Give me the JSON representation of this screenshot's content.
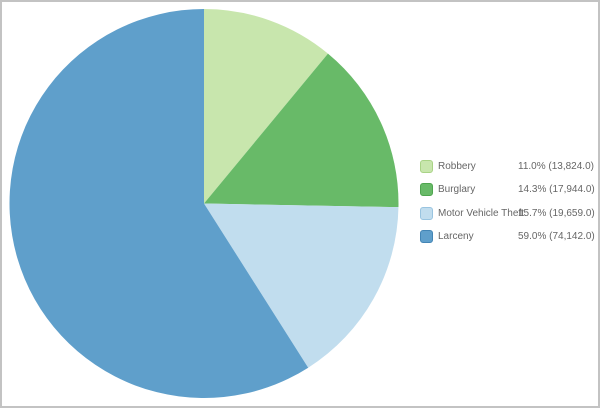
{
  "figure": {
    "background_color": "#ffffff",
    "frame_border_color": "#c3c3c3"
  },
  "chart_data": {
    "type": "pie",
    "title": "",
    "start_angle_deg": 0,
    "direction": "clockwise",
    "legend_position": "right",
    "slices": [
      {
        "label": "Robbery",
        "percent": 11.0,
        "value": 13824.0,
        "value_display": "11.0% (13,824.0)",
        "color": "#c8e6ad",
        "swatch_border_color": "#a9d386"
      },
      {
        "label": "Burglary",
        "percent": 14.3,
        "value": 17944.0,
        "value_display": "14.3% (17,944.0)",
        "color": "#68ba68",
        "swatch_border_color": "#4fa54f"
      },
      {
        "label": "Motor Vehicle Theft",
        "percent": 15.7,
        "value": 19659.0,
        "value_display": "15.7% (19,659.0)",
        "color": "#c1ddee",
        "swatch_border_color": "#99c4e0"
      },
      {
        "label": "Larceny",
        "percent": 59.0,
        "value": 74142.0,
        "value_display": "59.0% (74,142.0)",
        "color": "#5f9fcb",
        "swatch_border_color": "#4385b5"
      }
    ]
  }
}
